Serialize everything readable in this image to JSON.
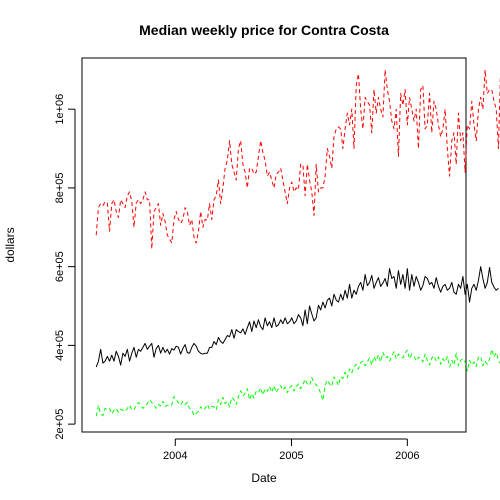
{
  "chart_data": {
    "type": "line",
    "title": "Median weekly price for Contra Costa",
    "xlabel": "Date",
    "ylabel": "dollars",
    "x_range": [
      "2003-04-27",
      "2006-05-21"
    ],
    "ylim": [
      180000,
      1130000
    ],
    "x_ticks": [
      {
        "date": "2004-01-01",
        "label": "2004"
      },
      {
        "date": "2005-01-01",
        "label": "2005"
      },
      {
        "date": "2006-01-01",
        "label": "2006"
      }
    ],
    "y_ticks": [
      {
        "value": 200000,
        "label": "2e+05"
      },
      {
        "value": 400000,
        "label": "4e+05"
      },
      {
        "value": 600000,
        "label": "6e+05"
      },
      {
        "value": 800000,
        "label": "8e+05"
      },
      {
        "value": 1000000,
        "label": "1e+06"
      }
    ],
    "legend": "none",
    "grid": false,
    "series": [
      {
        "color": "#000000",
        "dash": "solid",
        "start": "2003-04-27",
        "interval_days": 7,
        "values": [
          345000,
          360000,
          390000,
          355000,
          360000,
          372000,
          360000,
          375000,
          360000,
          385000,
          372000,
          350000,
          380000,
          372000,
          390000,
          360000,
          380000,
          395000,
          370000,
          390000,
          385000,
          395000,
          405000,
          390000,
          398000,
          405000,
          370000,
          392000,
          400000,
          380000,
          395000,
          382000,
          390000,
          378000,
          392000,
          388000,
          398000,
          395000,
          378000,
          392000,
          402000,
          382000,
          380000,
          395000,
          405000,
          398000,
          385000,
          380000,
          378000,
          380000,
          380000,
          395000,
          395000,
          410000,
          402000,
          420000,
          410000,
          405000,
          415000,
          425000,
          422000,
          440000,
          418000,
          440000,
          435000,
          432000,
          442000,
          428000,
          445000,
          460000,
          435000,
          462000,
          445000,
          465000,
          448000,
          440000,
          470000,
          450000,
          460000,
          445000,
          470000,
          448000,
          452000,
          465000,
          455000,
          470000,
          455000,
          460000,
          470000,
          455000,
          462000,
          478000,
          470000,
          450000,
          490000,
          455000,
          500000,
          480000,
          462000,
          470000,
          502000,
          490000,
          510000,
          495000,
          515000,
          520000,
          500000,
          530000,
          515000,
          510000,
          530000,
          515000,
          540000,
          520000,
          555000,
          520000,
          540000,
          530000,
          550000,
          560000,
          540000,
          580000,
          552000,
          560000,
          578000,
          545000,
          560000,
          572000,
          550000,
          558000,
          570000,
          550000,
          595000,
          570000,
          575000,
          545000,
          590000,
          555000,
          580000,
          545000,
          595000,
          540000,
          580000,
          550000,
          575000,
          560000,
          540000,
          552000,
          575000,
          570000,
          555000,
          560000,
          545000,
          572000,
          550000,
          535000,
          550000,
          555000,
          540000,
          545000,
          560000,
          535000,
          530000,
          555000,
          545000,
          575000,
          530000,
          555000,
          510000,
          545000,
          555000,
          540000,
          565000,
          600000,
          570000,
          545000,
          560000,
          598000,
          560000,
          548000,
          540000,
          545000
        ]
      },
      {
        "color": "#ff0000",
        "dash": "dashed",
        "start": "2003-04-27",
        "interval_days": 7,
        "values": [
          680000,
          750000,
          760000,
          755000,
          765000,
          762000,
          690000,
          760000,
          770000,
          740000,
          725000,
          770000,
          760000,
          750000,
          780000,
          790000,
          765000,
          700000,
          762000,
          770000,
          760000,
          770000,
          790000,
          770000,
          770000,
          645000,
          740000,
          750000,
          760000,
          705000,
          735000,
          715000,
          680000,
          670000,
          660000,
          720000,
          740000,
          720000,
          710000,
          720000,
          750000,
          740000,
          705000,
          720000,
          675000,
          660000,
          690000,
          740000,
          700000,
          720000,
          718000,
          760000,
          720000,
          770000,
          780000,
          820000,
          760000,
          800000,
          850000,
          870000,
          920000,
          860000,
          840000,
          820000,
          900000,
          920000,
          860000,
          840000,
          800000,
          850000,
          850000,
          835000,
          840000,
          880000,
          920000,
          890000,
          870000,
          830000,
          840000,
          820000,
          800000,
          835000,
          840000,
          850000,
          820000,
          790000,
          760000,
          800000,
          815000,
          790000,
          800000,
          795000,
          860000,
          860000,
          780000,
          860000,
          820000,
          790000,
          730000,
          860000,
          790000,
          800000,
          800000,
          830000,
          900000,
          880000,
          850000,
          930000,
          950000,
          955000,
          950000,
          900000,
          950000,
          990000,
          960000,
          1000000,
          900000,
          1060000,
          1090000,
          1000000,
          950000,
          1030000,
          1020000,
          1010000,
          940000,
          1050000,
          990000,
          1030000,
          1000000,
          980000,
          1100000,
          1050000,
          1020000,
          970000,
          950000,
          1000000,
          880000,
          1040000,
          1010000,
          1050000,
          960000,
          1030000,
          1000000,
          970000,
          1000000,
          900000,
          1050000,
          1060000,
          950000,
          960000,
          1040000,
          940000,
          1020000,
          1000000,
          960000,
          930000,
          950000,
          1000000,
          900000,
          830000,
          920000,
          940000,
          860000,
          990000,
          920000,
          940000,
          840000,
          960000,
          950000,
          1020000,
          960000,
          920000,
          1000000,
          1030000,
          1000000,
          1100000,
          1040000,
          1050000,
          1050000,
          1020000,
          1000000,
          900000,
          1110000,
          1060000
        ]
      },
      {
        "color": "#00ff00",
        "dash": "dashed",
        "start": "2003-04-27",
        "interval_days": 7,
        "values": [
          220000,
          248000,
          225000,
          222000,
          240000,
          238000,
          240000,
          226000,
          235000,
          240000,
          230000,
          238000,
          235000,
          232000,
          240000,
          248000,
          236000,
          236000,
          250000,
          255000,
          248000,
          240000,
          246000,
          252000,
          262000,
          255000,
          248000,
          240000,
          250000,
          246000,
          258000,
          245000,
          248000,
          245000,
          250000,
          270000,
          262000,
          255000,
          248000,
          258000,
          250000,
          255000,
          240000,
          236000,
          222000,
          228000,
          232000,
          244000,
          236000,
          240000,
          250000,
          238000,
          245000,
          244000,
          236000,
          262000,
          250000,
          268000,
          252000,
          258000,
          244000,
          268000,
          262000,
          250000,
          270000,
          285000,
          272000,
          278000,
          290000,
          262000,
          278000,
          266000,
          284000,
          280000,
          292000,
          274000,
          290000,
          284000,
          296000,
          281000,
          298000,
          280000,
          290000,
          298000,
          286000,
          294000,
          280000,
          292000,
          298000,
          284000,
          296000,
          302000,
          290000,
          300000,
          314000,
          302000,
          298000,
          318000,
          305000,
          300000,
          292000,
          278000,
          260000,
          298000,
          312000,
          302000,
          296000,
          320000,
          312000,
          298000,
          320000,
          316000,
          332000,
          318000,
          340000,
          330000,
          345000,
          352000,
          340000,
          356000,
          360000,
          348000,
          358000,
          368000,
          350000,
          372000,
          360000,
          376000,
          358000,
          382000,
          368000,
          372000,
          360000,
          372000,
          384000,
          366000,
          378000,
          372000,
          368000,
          380000,
          388000,
          366000,
          378000,
          372000,
          360000,
          370000,
          368000,
          358000,
          378000,
          362000,
          350000,
          368000,
          374000,
          360000,
          370000,
          352000,
          366000,
          358000,
          372000,
          345000,
          362000,
          350000,
          380000,
          348000,
          362000,
          366000,
          358000,
          335000,
          362000,
          350000,
          358000,
          346000,
          370000,
          372000,
          348000,
          360000,
          352000,
          365000,
          390000,
          370000,
          382000,
          362000,
          352000,
          358000
        ]
      }
    ]
  }
}
